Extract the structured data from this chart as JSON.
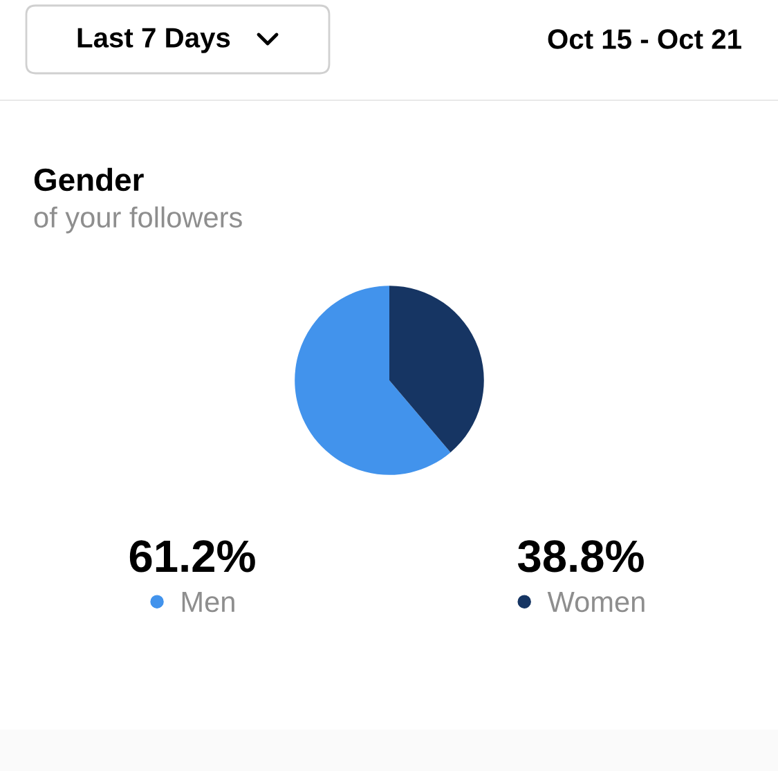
{
  "chart_data": {
    "type": "pie",
    "title": "Gender",
    "subtitle": "of your followers",
    "categories": [
      "Men",
      "Women"
    ],
    "values": [
      61.2,
      38.8
    ],
    "colors": [
      "#4293ec",
      "#163563"
    ],
    "value_labels": [
      "61.2%",
      "38.8%"
    ],
    "legend": "bottom",
    "annotations": [
      "Last 7 Days",
      "Oct 15 - Oct 21"
    ]
  }
}
